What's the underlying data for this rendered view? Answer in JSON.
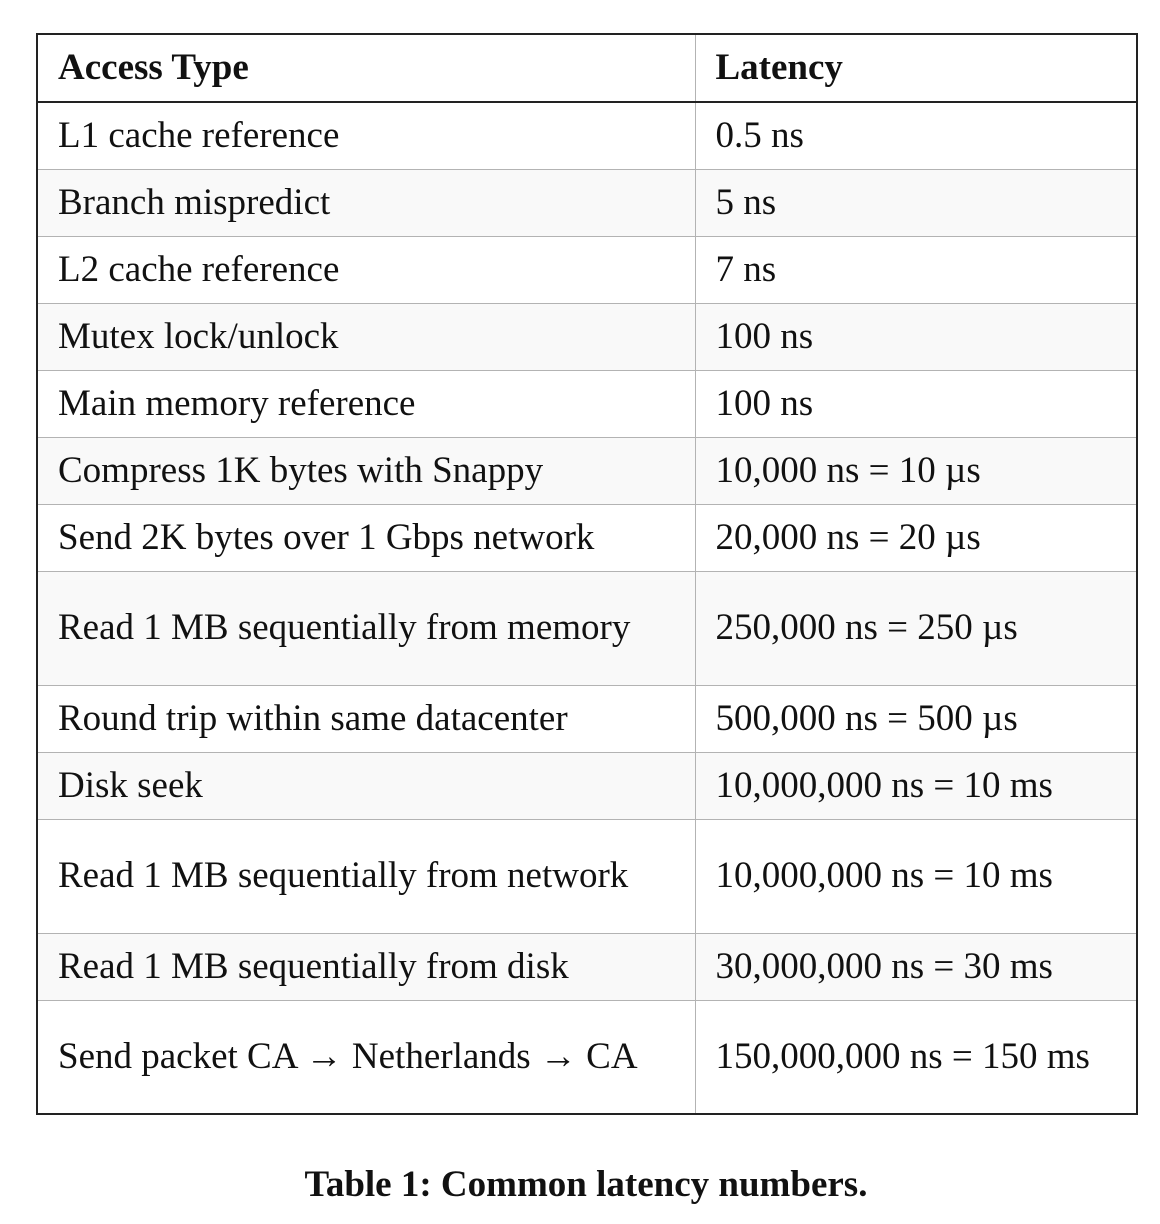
{
  "table": {
    "headers": {
      "access_type": "Access Type",
      "latency": "Latency"
    },
    "rows": [
      {
        "access_type": "L1 cache reference",
        "latency": "0.5 ns"
      },
      {
        "access_type": "Branch mispredict",
        "latency": "5 ns"
      },
      {
        "access_type": "L2 cache reference",
        "latency": "7 ns"
      },
      {
        "access_type": "Mutex lock/unlock",
        "latency": "100 ns"
      },
      {
        "access_type": "Main memory reference",
        "latency": "100 ns"
      },
      {
        "access_type": "Compress 1K bytes with Snappy",
        "latency": "10,000 ns = 10 µs"
      },
      {
        "access_type": "Send 2K bytes over 1 Gbps network",
        "latency": "20,000 ns = 20 µs"
      },
      {
        "access_type": "Read 1 MB sequentially from memory",
        "latency": "250,000 ns = 250 µs"
      },
      {
        "access_type": "Round trip within same datacenter",
        "latency": "500,000 ns = 500 µs"
      },
      {
        "access_type": "Disk seek",
        "latency": "10,000,000 ns = 10 ms"
      },
      {
        "access_type": "Read 1 MB sequentially from network",
        "latency": "10,000,000 ns = 10 ms"
      },
      {
        "access_type": "Read 1 MB sequentially from disk",
        "latency": "30,000,000 ns = 30 ms"
      },
      {
        "access_type": "Send packet CA → Netherlands → CA",
        "latency": "150,000,000 ns = 150 ms"
      }
    ]
  },
  "caption": "Table 1: Common latency numbers."
}
